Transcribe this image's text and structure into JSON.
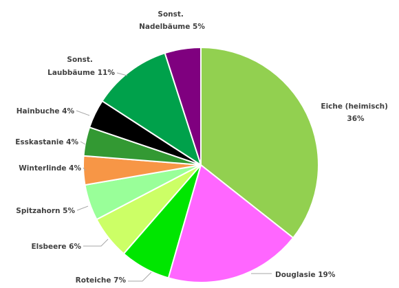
{
  "chart_data": {
    "type": "pie",
    "start_angle_deg": 0,
    "direction": "clockwise",
    "slices": [
      {
        "label": "Eiche (heimisch)",
        "value": 36,
        "color": "#92d050"
      },
      {
        "label": "Douglasie",
        "value": 19,
        "color": "#ff66ff"
      },
      {
        "label": "Roteiche",
        "value": 7,
        "color": "#00e600"
      },
      {
        "label": "Elsbeere",
        "value": 6,
        "color": "#ccff66"
      },
      {
        "label": "Spitzahorn",
        "value": 5,
        "color": "#99ff99"
      },
      {
        "label": "Winterlinde",
        "value": 4,
        "color": "#f79646"
      },
      {
        "label": "Esskastanie",
        "value": 4,
        "color": "#339933"
      },
      {
        "label": "Hainbuche",
        "value": 4,
        "color": "#000000"
      },
      {
        "label": "Sonst. Laubbäume",
        "value": 11,
        "color": "#00a14b"
      },
      {
        "label": "Sonst. Nadelbäume",
        "value": 5,
        "color": "#7f007f"
      }
    ],
    "data_labels": [
      {
        "line1": "Eiche (heimisch)",
        "line2": "36%"
      },
      {
        "line1": "Douglasie 19%",
        "line2": ""
      },
      {
        "line1": "Roteiche 7%",
        "line2": ""
      },
      {
        "line1": "Elsbeere 6%",
        "line2": ""
      },
      {
        "line1": "Spitzahorn 5%",
        "line2": ""
      },
      {
        "line1": "Winterlinde 4%",
        "line2": ""
      },
      {
        "line1": "Esskastanie 4%",
        "line2": ""
      },
      {
        "line1": "Hainbuche 4%",
        "line2": ""
      },
      {
        "line1": "Sonst.",
        "line2": "Laubbäume 11%"
      },
      {
        "line1": "Sonst.",
        "line2": "Nadelbäume 5%"
      }
    ]
  }
}
